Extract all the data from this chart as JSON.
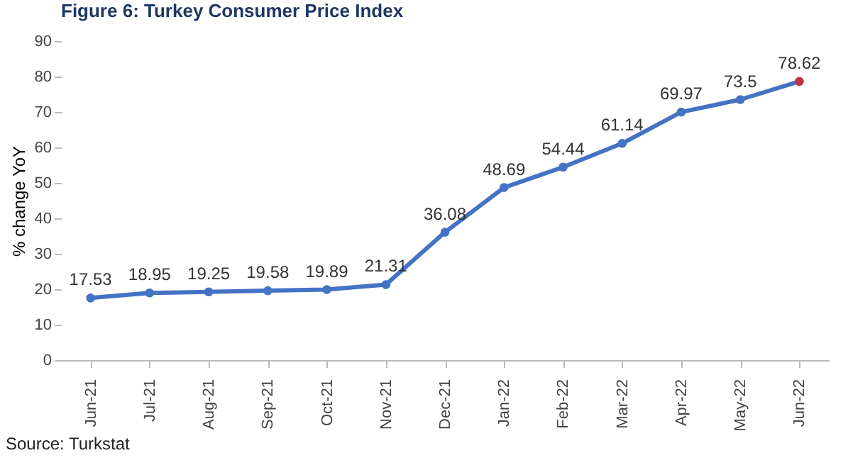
{
  "chart_data": {
    "type": "line",
    "title": "Figure 6: Turkey Consumer Price Index",
    "ylabel": "% change YoY",
    "categories": [
      "Jun-21",
      "Jul-21",
      "Aug-21",
      "Sep-21",
      "Oct-21",
      "Nov-21",
      "Dec-21",
      "Jan-22",
      "Feb-22",
      "Mar-22",
      "Apr-22",
      "May-22",
      "Jun-22"
    ],
    "series": [
      {
        "color": "#4472c4",
        "colors": [
          "#4472c4",
          "#4472c4",
          "#4472c4",
          "#4472c4",
          "#4472c4",
          "#4472c4",
          "#4472c4",
          "#4472c4",
          "#4472c4",
          "#4472c4",
          "#4472c4",
          "#4472c4",
          "#c0304a"
        ],
        "values": [
          17.53,
          18.95,
          19.25,
          19.58,
          19.89,
          21.31,
          36.08,
          48.69,
          54.44,
          61.14,
          69.97,
          73.5,
          78.62
        ]
      }
    ],
    "ylim": [
      0,
      90
    ],
    "yticks": [
      0,
      10,
      20,
      30,
      40,
      50,
      60,
      70,
      80,
      90
    ],
    "data_labels": true,
    "marker": "circle",
    "line_style": "solid",
    "grid": false,
    "annotations": [
      "Source: Turkstat"
    ]
  }
}
